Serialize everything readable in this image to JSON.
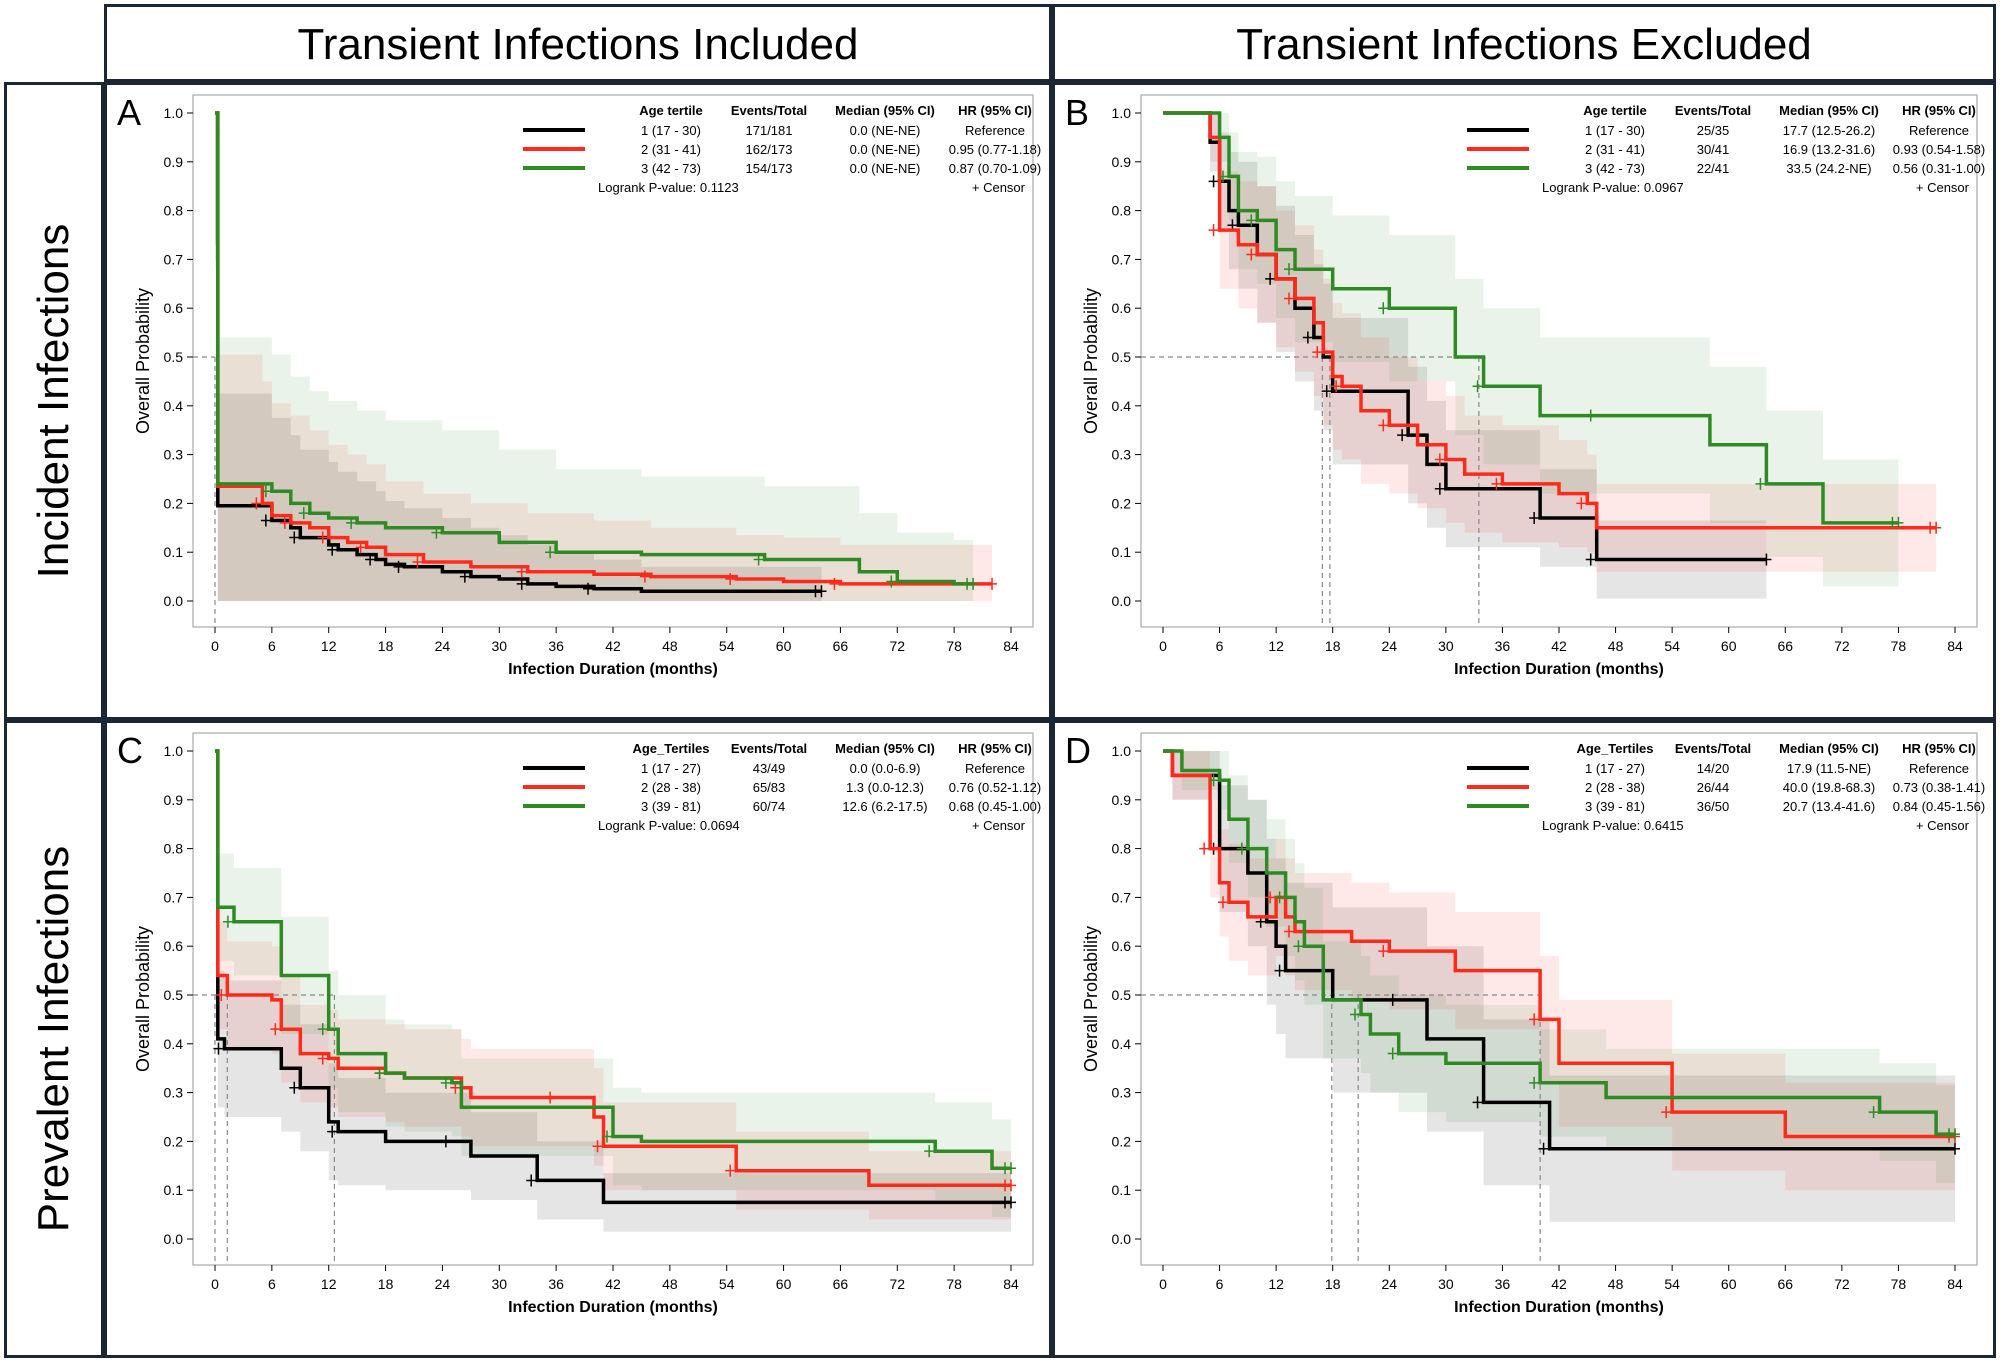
{
  "column_titles": [
    "Transient Infections Included",
    "Transient Infections Excluded"
  ],
  "row_titles": [
    "Incident Infections",
    "Prevalent Infections"
  ],
  "colors": {
    "tertile_1": "#000000",
    "tertile_2": "#ff2a1a",
    "tertile_3": "#2e8b23",
    "frame": "#1b2735",
    "ref_line": "#888888"
  },
  "chart_data": [
    {
      "type": "line",
      "panel": "A",
      "xlabel": "Infection Duration (months)",
      "ylabel": "Overall Probability",
      "xlim": [
        0,
        84
      ],
      "ylim": [
        0,
        1
      ],
      "xticks": [
        "0",
        "6",
        "12",
        "18",
        "24",
        "30",
        "36",
        "42",
        "48",
        "54",
        "60",
        "66",
        "72",
        "78",
        "84"
      ],
      "yticks": [
        "0.0",
        "0.1",
        "0.2",
        "0.3",
        "0.4",
        "0.5",
        "0.6",
        "0.7",
        "0.8",
        "0.9",
        "1.0"
      ],
      "legend_headers": [
        "Age tertile",
        "Events/Total",
        "Median (95% CI)",
        "HR (95% CI)"
      ],
      "legend_rows": [
        [
          "1 (17 - 30)",
          "171/181",
          "0.0 (NE-NE)",
          "Reference"
        ],
        [
          "2 (31 - 41)",
          "162/173",
          "0.0 (NE-NE)",
          "0.95 (0.77-1.18)"
        ],
        [
          "3 (42 - 73)",
          "154/173",
          "0.0 (NE-NE)",
          "0.87 (0.70-1.09)"
        ]
      ],
      "logrank": "Logrank P-value: 0.1123",
      "censor_label": "+ Censor",
      "median_x": [
        0
      ],
      "series": [
        {
          "name": "1 (17 - 30)",
          "x": [
            0,
            0.3,
            6,
            8,
            9,
            12,
            13,
            15,
            17,
            18,
            20,
            24,
            27,
            30,
            33,
            36,
            40,
            45,
            64
          ],
          "y": [
            1,
            0.195,
            0.165,
            0.15,
            0.13,
            0.115,
            0.105,
            0.095,
            0.085,
            0.075,
            0.07,
            0.06,
            0.05,
            0.045,
            0.035,
            0.03,
            0.025,
            0.02,
            0.02
          ],
          "ci": [
            0.27,
            0.23,
            0.21,
            0.19,
            0.18,
            0.17,
            0.16,
            0.15,
            0.14,
            0.13,
            0.12,
            0.11,
            0.1,
            0.09,
            0.08,
            0.07,
            0.06,
            0.05,
            0.05
          ]
        },
        {
          "name": "2 (31 - 41)",
          "x": [
            0,
            0.3,
            5,
            6,
            8,
            10,
            12,
            14,
            16,
            18,
            22,
            27,
            33,
            40,
            46,
            50,
            55,
            60,
            66,
            82
          ],
          "y": [
            1,
            0.235,
            0.2,
            0.175,
            0.16,
            0.15,
            0.13,
            0.12,
            0.11,
            0.095,
            0.08,
            0.07,
            0.06,
            0.055,
            0.05,
            0.05,
            0.045,
            0.04,
            0.035,
            0.035
          ],
          "ci": [
            0.3,
            0.27,
            0.25,
            0.23,
            0.22,
            0.2,
            0.19,
            0.18,
            0.17,
            0.15,
            0.14,
            0.13,
            0.12,
            0.11,
            0.1,
            0.1,
            0.09,
            0.09,
            0.08,
            0.08
          ]
        },
        {
          "name": "3 (42 - 73)",
          "x": [
            0,
            0.3,
            6,
            8,
            10,
            12,
            15,
            18,
            24,
            30,
            36,
            45,
            58,
            68,
            72,
            78,
            80
          ],
          "y": [
            1,
            0.24,
            0.225,
            0.2,
            0.18,
            0.17,
            0.16,
            0.15,
            0.14,
            0.12,
            0.1,
            0.095,
            0.085,
            0.06,
            0.04,
            0.035,
            0.035
          ],
          "ci": [
            0.32,
            0.3,
            0.28,
            0.26,
            0.25,
            0.24,
            0.23,
            0.22,
            0.21,
            0.19,
            0.17,
            0.16,
            0.15,
            0.12,
            0.1,
            0.09,
            0.09
          ]
        }
      ]
    },
    {
      "type": "line",
      "panel": "B",
      "xlabel": "Infection Duration (months)",
      "ylabel": "Overall Probability",
      "xlim": [
        0,
        84
      ],
      "ylim": [
        0,
        1
      ],
      "xticks": [
        "0",
        "6",
        "12",
        "18",
        "24",
        "30",
        "36",
        "42",
        "48",
        "54",
        "60",
        "66",
        "72",
        "78",
        "84"
      ],
      "yticks": [
        "0.0",
        "0.1",
        "0.2",
        "0.3",
        "0.4",
        "0.5",
        "0.6",
        "0.7",
        "0.8",
        "0.9",
        "1.0"
      ],
      "legend_headers": [
        "Age tertile",
        "Events/Total",
        "Median (95% CI)",
        "HR (95% CI)"
      ],
      "legend_rows": [
        [
          "1 (17 - 30)",
          "25/35",
          "17.7 (12.5-26.2)",
          "Reference"
        ],
        [
          "2 (31 - 41)",
          "30/41",
          "16.9 (13.2-31.6)",
          "0.93 (0.54-1.58)"
        ],
        [
          "3 (42 - 73)",
          "22/41",
          "33.5 (24.2-NE)",
          "0.56 (0.31-1.00)"
        ]
      ],
      "logrank": "Logrank P-value: 0.0967",
      "censor_label": "+ Censor",
      "median_x": [
        16.9,
        17.7,
        33.5
      ],
      "series": [
        {
          "name": "1 (17 - 30)",
          "x": [
            0,
            5,
            6,
            7,
            8,
            10,
            12,
            14,
            16,
            17,
            18,
            20,
            26,
            28,
            30,
            34,
            40,
            44,
            46,
            64
          ],
          "y": [
            1,
            0.94,
            0.86,
            0.8,
            0.77,
            0.71,
            0.66,
            0.6,
            0.54,
            0.5,
            0.43,
            0.43,
            0.34,
            0.28,
            0.23,
            0.23,
            0.17,
            0.17,
            0.085,
            0.085
          ],
          "ci": [
            0.0,
            0.06,
            0.1,
            0.12,
            0.13,
            0.14,
            0.15,
            0.15,
            0.15,
            0.15,
            0.15,
            0.15,
            0.14,
            0.13,
            0.12,
            0.12,
            0.1,
            0.1,
            0.08,
            0.08
          ]
        },
        {
          "name": "2 (31 - 41)",
          "x": [
            0,
            5,
            6,
            8,
            10,
            12,
            14,
            16,
            17,
            18,
            19,
            21,
            24,
            27,
            30,
            32,
            36,
            42,
            45,
            46,
            82
          ],
          "y": [
            1,
            0.95,
            0.76,
            0.73,
            0.71,
            0.66,
            0.62,
            0.57,
            0.51,
            0.46,
            0.44,
            0.39,
            0.36,
            0.32,
            0.29,
            0.26,
            0.24,
            0.22,
            0.2,
            0.15,
            0.15
          ],
          "ci": [
            0.0,
            0.05,
            0.12,
            0.13,
            0.14,
            0.14,
            0.15,
            0.15,
            0.15,
            0.15,
            0.15,
            0.15,
            0.14,
            0.13,
            0.13,
            0.12,
            0.12,
            0.11,
            0.1,
            0.09,
            0.09
          ]
        },
        {
          "name": "3 (42 - 73)",
          "x": [
            0,
            6,
            7,
            8,
            10,
            12,
            14,
            18,
            24,
            31,
            34,
            40,
            46,
            58,
            64,
            70,
            78
          ],
          "y": [
            1,
            0.95,
            0.87,
            0.8,
            0.78,
            0.72,
            0.68,
            0.64,
            0.6,
            0.5,
            0.44,
            0.38,
            0.38,
            0.32,
            0.24,
            0.16,
            0.16
          ],
          "ci": [
            0.0,
            0.05,
            0.09,
            0.12,
            0.13,
            0.14,
            0.15,
            0.15,
            0.15,
            0.16,
            0.16,
            0.16,
            0.16,
            0.16,
            0.15,
            0.13,
            0.13
          ]
        }
      ]
    },
    {
      "type": "line",
      "panel": "C",
      "xlabel": "Infection Duration (months)",
      "ylabel": "Overall Probability",
      "xlim": [
        0,
        84
      ],
      "ylim": [
        0,
        1
      ],
      "xticks": [
        "0",
        "6",
        "12",
        "18",
        "24",
        "30",
        "36",
        "42",
        "48",
        "54",
        "60",
        "66",
        "72",
        "78",
        "84"
      ],
      "yticks": [
        "0.0",
        "0.1",
        "0.2",
        "0.3",
        "0.4",
        "0.5",
        "0.6",
        "0.7",
        "0.8",
        "0.9",
        "1.0"
      ],
      "legend_headers": [
        "Age_Tertiles",
        "Events/Total",
        "Median (95% CI)",
        "HR (95% CI)"
      ],
      "legend_rows": [
        [
          "1 (17 - 27)",
          "43/49",
          "0.0 (0.0-6.9)",
          "Reference"
        ],
        [
          "2 (28 - 38)",
          "65/83",
          "1.3 (0.0-12.3)",
          "0.76 (0.52-1.12)"
        ],
        [
          "3 (39 - 81)",
          "60/74",
          "12.6 (6.2-17.5)",
          "0.68 (0.45-1.00)"
        ]
      ],
      "logrank": "Logrank P-value: 0.0694",
      "censor_label": "+ Censor",
      "median_x": [
        0,
        1.3,
        12.6
      ],
      "series": [
        {
          "name": "1 (17 - 27)",
          "x": [
            0,
            0.3,
            1,
            7,
            9,
            12,
            13,
            18,
            25,
            27,
            34,
            41,
            84
          ],
          "y": [
            1,
            0.41,
            0.39,
            0.35,
            0.31,
            0.24,
            0.22,
            0.2,
            0.2,
            0.17,
            0.12,
            0.075,
            0.075
          ],
          "ci": [
            0.0,
            0.14,
            0.14,
            0.13,
            0.13,
            0.12,
            0.11,
            0.1,
            0.1,
            0.09,
            0.08,
            0.06,
            0.06
          ]
        },
        {
          "name": "2 (28 - 38)",
          "x": [
            0,
            0.3,
            1.3,
            6,
            7,
            9,
            12,
            13,
            18,
            20,
            26,
            27,
            36,
            40,
            41,
            53,
            55,
            69,
            84
          ],
          "y": [
            1,
            0.54,
            0.5,
            0.49,
            0.43,
            0.38,
            0.37,
            0.35,
            0.34,
            0.33,
            0.31,
            0.29,
            0.29,
            0.25,
            0.19,
            0.19,
            0.14,
            0.11,
            0.11
          ],
          "ci": [
            0.0,
            0.11,
            0.11,
            0.11,
            0.11,
            0.1,
            0.1,
            0.1,
            0.1,
            0.1,
            0.1,
            0.1,
            0.1,
            0.1,
            0.09,
            0.09,
            0.08,
            0.07,
            0.07
          ]
        },
        {
          "name": "3 (39 - 81)",
          "x": [
            0,
            0.3,
            2,
            7,
            12,
            13,
            18,
            20,
            25,
            26,
            42,
            45,
            76,
            82,
            84
          ],
          "y": [
            1,
            0.68,
            0.65,
            0.54,
            0.43,
            0.38,
            0.34,
            0.33,
            0.32,
            0.27,
            0.21,
            0.2,
            0.18,
            0.145,
            0.145
          ],
          "ci": [
            0.0,
            0.11,
            0.11,
            0.12,
            0.12,
            0.12,
            0.11,
            0.11,
            0.11,
            0.1,
            0.1,
            0.1,
            0.1,
            0.1,
            0.1
          ]
        }
      ]
    },
    {
      "type": "line",
      "panel": "D",
      "xlabel": "Infection Duration (months)",
      "ylabel": "Overall Probability",
      "xlim": [
        0,
        84
      ],
      "ylim": [
        0,
        1
      ],
      "xticks": [
        "0",
        "6",
        "12",
        "18",
        "24",
        "30",
        "36",
        "42",
        "48",
        "54",
        "60",
        "66",
        "72",
        "78",
        "84"
      ],
      "yticks": [
        "0.0",
        "0.1",
        "0.2",
        "0.3",
        "0.4",
        "0.5",
        "0.6",
        "0.7",
        "0.8",
        "0.9",
        "1.0"
      ],
      "legend_headers": [
        "Age_Tertiles",
        "Events/Total",
        "Median (95% CI)",
        "HR (95% CI)"
      ],
      "legend_rows": [
        [
          "1 (17 - 27)",
          "14/20",
          "17.9 (11.5-NE)",
          "Reference"
        ],
        [
          "2 (28 - 38)",
          "26/44",
          "40.0 (19.8-68.3)",
          "0.73 (0.38-1.41)"
        ],
        [
          "3 (39 - 81)",
          "36/50",
          "20.7 (13.4-41.6)",
          "0.84 (0.45-1.56)"
        ]
      ],
      "logrank": "Logrank P-value: 0.6415",
      "censor_label": "+ Censor",
      "median_x": [
        17.9,
        20.7,
        40
      ],
      "series": [
        {
          "name": "1 (17 - 27)",
          "x": [
            0,
            1,
            6,
            9,
            11,
            12,
            13,
            18,
            25,
            28,
            34,
            40,
            41,
            84
          ],
          "y": [
            1,
            0.95,
            0.8,
            0.75,
            0.65,
            0.6,
            0.55,
            0.49,
            0.49,
            0.41,
            0.28,
            0.28,
            0.185,
            0.185
          ],
          "ci": [
            0.0,
            0.05,
            0.13,
            0.15,
            0.17,
            0.18,
            0.18,
            0.19,
            0.19,
            0.19,
            0.17,
            0.17,
            0.15,
            0.15
          ]
        },
        {
          "name": "2 (28 - 38)",
          "x": [
            0,
            1,
            5,
            6,
            7,
            9,
            12,
            13,
            14,
            20,
            24,
            31,
            40,
            42,
            54,
            66,
            84
          ],
          "y": [
            1,
            0.95,
            0.8,
            0.73,
            0.69,
            0.66,
            0.7,
            0.66,
            0.63,
            0.61,
            0.59,
            0.55,
            0.45,
            0.36,
            0.26,
            0.21,
            0.21
          ],
          "ci": [
            0.0,
            0.05,
            0.1,
            0.11,
            0.12,
            0.12,
            0.12,
            0.12,
            0.12,
            0.12,
            0.12,
            0.12,
            0.13,
            0.13,
            0.12,
            0.11,
            0.11
          ]
        },
        {
          "name": "3 (39 - 81)",
          "x": [
            0,
            2,
            6,
            7,
            9,
            11,
            13,
            14,
            15,
            17,
            21,
            22,
            25,
            30,
            40,
            47,
            76,
            82,
            84
          ],
          "y": [
            1,
            0.96,
            0.94,
            0.86,
            0.8,
            0.75,
            0.7,
            0.65,
            0.6,
            0.49,
            0.46,
            0.42,
            0.38,
            0.36,
            0.32,
            0.29,
            0.26,
            0.215,
            0.215
          ],
          "ci": [
            0.0,
            0.04,
            0.06,
            0.09,
            0.1,
            0.11,
            0.12,
            0.12,
            0.12,
            0.12,
            0.12,
            0.12,
            0.12,
            0.12,
            0.11,
            0.1,
            0.1,
            0.1,
            0.1
          ]
        }
      ]
    }
  ]
}
